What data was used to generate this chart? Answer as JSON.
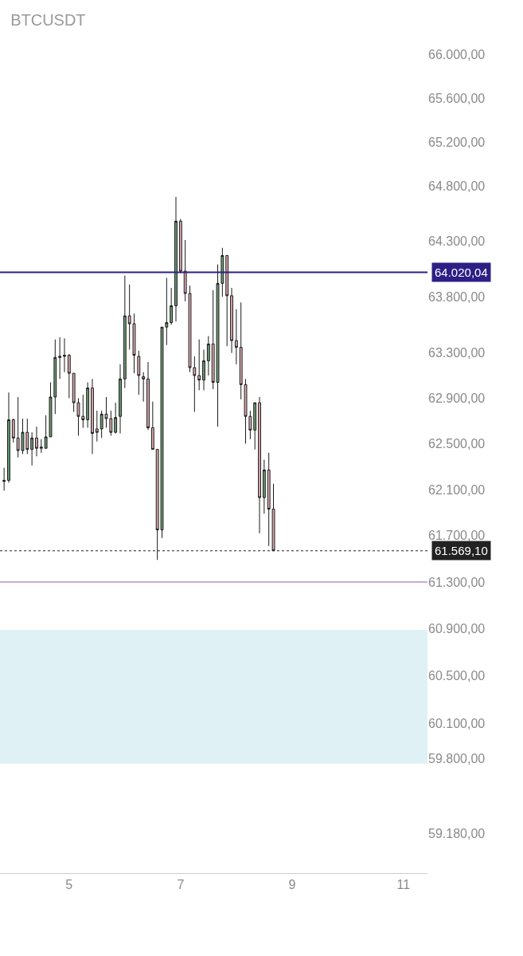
{
  "chart_data": {
    "type": "candlestick",
    "title": "BTCUSDT",
    "x": [
      3.8333,
      3.9167,
      4.0,
      4.0833,
      4.1667,
      4.25,
      4.3333,
      4.4167,
      4.5,
      4.5833,
      4.6667,
      4.75,
      4.8333,
      4.9167,
      5.0,
      5.0833,
      5.1667,
      5.25,
      5.3333,
      5.4167,
      5.5,
      5.5833,
      5.6667,
      5.75,
      5.8333,
      5.9167,
      6.0,
      6.0833,
      6.1667,
      6.25,
      6.3333,
      6.4167,
      6.5,
      6.5833,
      6.6667,
      6.75,
      6.8333,
      6.9167,
      7.0,
      7.0833,
      7.1667,
      7.25,
      7.3333,
      7.4167,
      7.5,
      7.5833,
      7.6667,
      7.75,
      7.8333,
      7.9167,
      8.0,
      8.0833,
      8.1667,
      8.25,
      8.3333,
      8.4167,
      8.5,
      8.5833,
      8.6667
    ],
    "ohlc": [
      [
        62170,
        62290,
        62090,
        62180
      ],
      [
        62180,
        62950,
        62160,
        62710
      ],
      [
        62710,
        62720,
        62510,
        62550
      ],
      [
        62550,
        62910,
        62380,
        62440
      ],
      [
        62440,
        62720,
        62410,
        62600
      ],
      [
        62600,
        62720,
        62410,
        62450
      ],
      [
        62450,
        62600,
        62310,
        62550
      ],
      [
        62550,
        62650,
        62390,
        62460
      ],
      [
        62460,
        62540,
        62420,
        62470
      ],
      [
        62460,
        62750,
        62460,
        62560
      ],
      [
        62560,
        63040,
        62560,
        62910
      ],
      [
        62910,
        63420,
        62760,
        63260
      ],
      [
        63260,
        63440,
        63070,
        63270
      ],
      [
        63270,
        63430,
        63130,
        63280
      ],
      [
        63280,
        63290,
        62900,
        63120
      ],
      [
        63120,
        63120,
        62780,
        62860
      ],
      [
        62860,
        62900,
        62570,
        62740
      ],
      [
        62740,
        62930,
        62640,
        62710
      ],
      [
        62710,
        63040,
        62640,
        62990
      ],
      [
        62990,
        63070,
        62410,
        62590
      ],
      [
        62630,
        62790,
        62520,
        62600
      ],
      [
        62630,
        62790,
        62550,
        62760
      ],
      [
        62760,
        62910,
        62640,
        62720
      ],
      [
        62720,
        62790,
        62570,
        62600
      ],
      [
        62600,
        62860,
        62590,
        62730
      ],
      [
        62740,
        63200,
        62590,
        63070
      ],
      [
        63070,
        63990,
        62990,
        63630
      ],
      [
        63630,
        63910,
        63330,
        63560
      ],
      [
        63560,
        63650,
        63120,
        63280
      ],
      [
        63270,
        63320,
        62930,
        63100
      ],
      [
        63090,
        63130,
        62870,
        63070
      ],
      [
        63070,
        63220,
        62620,
        62640
      ],
      [
        62640,
        62870,
        62450,
        62450
      ],
      [
        62450,
        62450,
        61490,
        61750
      ],
      [
        61750,
        63530,
        61680,
        63530
      ],
      [
        63530,
        63970,
        63370,
        63570
      ],
      [
        63570,
        63880,
        63550,
        63720
      ],
      [
        63720,
        64700,
        63580,
        64480
      ],
      [
        64480,
        64500,
        64010,
        64030
      ],
      [
        64030,
        64310,
        63760,
        63830
      ],
      [
        63830,
        63900,
        63130,
        63170
      ],
      [
        63170,
        63270,
        62780,
        63100
      ],
      [
        63100,
        63420,
        62970,
        63060
      ],
      [
        63060,
        63330,
        62970,
        63230
      ],
      [
        63230,
        63450,
        63100,
        63380
      ],
      [
        63380,
        63860,
        62980,
        63040
      ],
      [
        63040,
        64090,
        62650,
        63920
      ],
      [
        63920,
        64240,
        63800,
        64170
      ],
      [
        64170,
        64170,
        63360,
        63810
      ],
      [
        63810,
        63880,
        63300,
        63410
      ],
      [
        63410,
        63690,
        63200,
        63350
      ],
      [
        63350,
        63750,
        62890,
        63020
      ],
      [
        63020,
        63070,
        62500,
        62740
      ],
      [
        62740,
        62790,
        62540,
        62620
      ],
      [
        62620,
        62860,
        62450,
        62860
      ],
      [
        62860,
        62910,
        61720,
        62030
      ],
      [
        62030,
        62360,
        61890,
        62270
      ],
      [
        62270,
        62420,
        61610,
        61930
      ],
      [
        61930,
        62150,
        61570,
        61570
      ]
    ],
    "xlim": [
      3.76,
      11.43
    ],
    "xticks": [
      5,
      7,
      9,
      11
    ],
    "ylim": [
      58850,
      66510
    ],
    "log": true,
    "yticks": [
      {
        "value": 66000,
        "label": "66.000,00"
      },
      {
        "value": 65600,
        "label": "65.600,00"
      },
      {
        "value": 65200,
        "label": "65.200,00"
      },
      {
        "value": 64800,
        "label": "64.800,00"
      },
      {
        "value": 64300,
        "label": "64.300,00"
      },
      {
        "value": 63800,
        "label": "63.800,00"
      },
      {
        "value": 63300,
        "label": "63.300,00"
      },
      {
        "value": 62900,
        "label": "62.900,00"
      },
      {
        "value": 62500,
        "label": "62.500,00"
      },
      {
        "value": 62100,
        "label": "62.100,00"
      },
      {
        "value": 61700,
        "label": "61.700,00"
      },
      {
        "value": 61300,
        "label": "61.300,00"
      },
      {
        "value": 60900,
        "label": "60.900,00"
      },
      {
        "value": 60500,
        "label": "60.500,00"
      },
      {
        "value": 60100,
        "label": "60.100,00"
      },
      {
        "value": 59800,
        "label": "59.800,00"
      },
      {
        "value": 59180,
        "label": "59.180,00"
      }
    ],
    "ref_lines": [
      {
        "axis": "y",
        "value": 64020.04,
        "label": "64.020,04",
        "color": "#2e1f86",
        "line_style": "solid"
      },
      {
        "axis": "y",
        "value": 61569.1,
        "label": "61.569,10",
        "color": "#222222",
        "line_style": "dotted"
      },
      {
        "axis": "y",
        "value": 61300,
        "label": null,
        "color": "#8a5cc0",
        "line_style": "solid"
      }
    ],
    "bands": [
      {
        "axis": "y",
        "from": 59760,
        "to": 60890,
        "label": null,
        "color": "#dff1f5"
      }
    ],
    "grid": false
  }
}
